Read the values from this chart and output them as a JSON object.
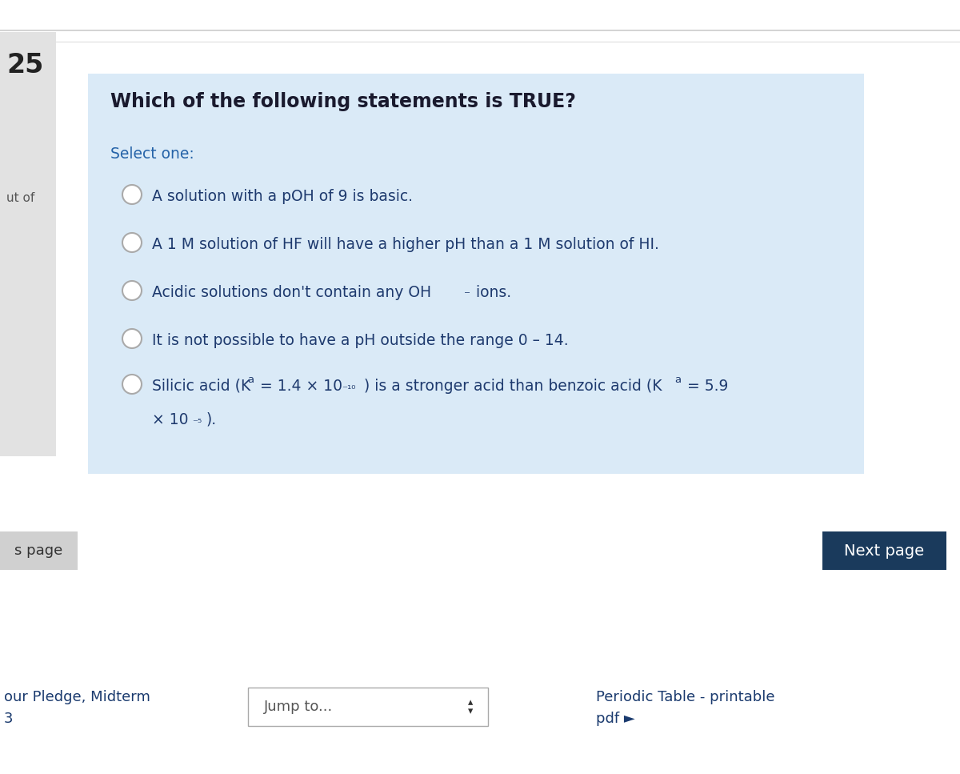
{
  "bg_color": "#ffffff",
  "question_box_color": "#daeaf7",
  "question_number": "25",
  "question_number_bg": "#e2e2e2",
  "question_text": "Which of the following statements is TRUE?",
  "select_text": "Select one:",
  "select_color": "#2563a8",
  "question_text_color": "#1a1a2e",
  "option_color": "#1e3a6e",
  "radio_fill": "#ffffff",
  "radio_edge": "#aaaaaa",
  "left_sidebar_color": "#e2e2e2",
  "next_btn_color": "#1a3a5c",
  "next_btn_text": "Next page",
  "next_btn_text_color": "#ffffff",
  "s_page_text": "s page",
  "s_page_bg": "#d0d0d0",
  "s_page_color": "#333333",
  "bottom_left_color": "#1a3a6e",
  "jump_label": "Jump to...",
  "periodic_color": "#1a3a6e",
  "top_separator_color": "#cccccc",
  "top_separator2_color": "#dddddd"
}
